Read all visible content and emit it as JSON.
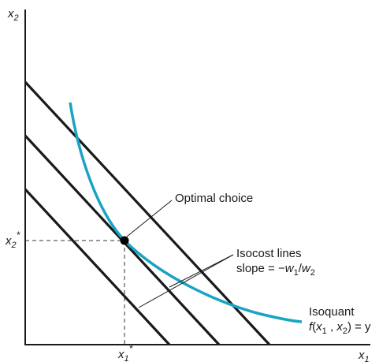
{
  "axes": {
    "y_label": "x",
    "y_sub": "2",
    "x_label": "x",
    "x_sub": "1"
  },
  "ticks": {
    "x_star_main": "x",
    "x_star_sub": "1",
    "x_star_sup": "*",
    "y_star_main": "x",
    "y_star_sub": "2",
    "y_star_sup": "*"
  },
  "labels": {
    "optimal_choice": "Optimal choice",
    "isocost_line1": "Isocost lines",
    "isocost_line2_prefix": "slope = −",
    "isocost_w": "w",
    "isocost_sub1": "1",
    "isocost_slash": "/",
    "isocost_sub2": "2",
    "isoquant_line1": "Isoquant",
    "isoquant_f": "f",
    "isoquant_open": "(",
    "isoquant_x": "x",
    "isoquant_sub1": "1",
    "isoquant_comma": " , ",
    "isoquant_sub2": "2",
    "isoquant_close": ") = y"
  },
  "colors": {
    "isoquant": "#1aa3c4",
    "ink": "#1a1a1a"
  }
}
